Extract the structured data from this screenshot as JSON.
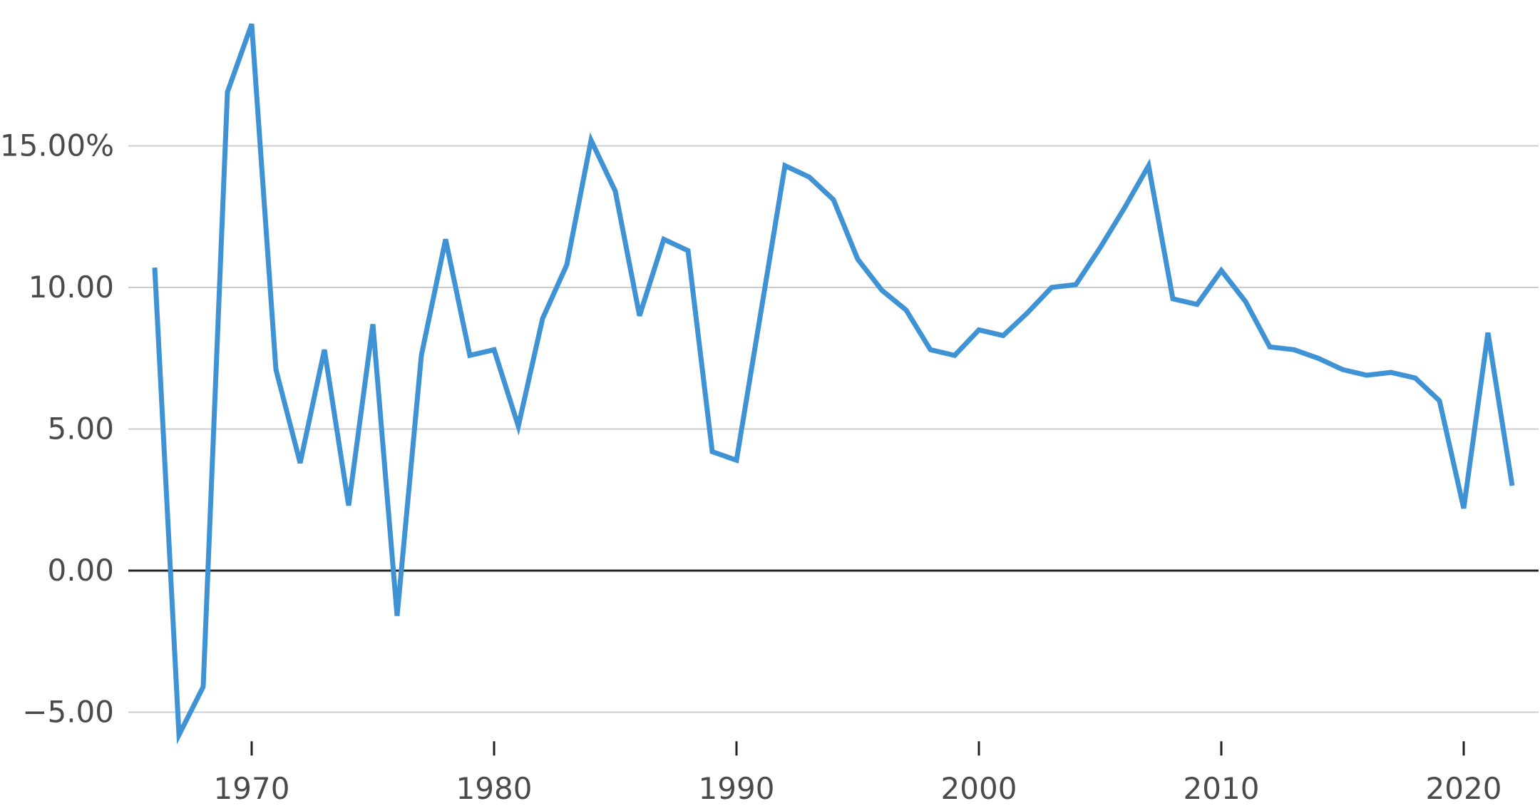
{
  "chart_data": {
    "type": "line",
    "title": "",
    "xlabel": "",
    "ylabel": "",
    "x": [
      1966,
      1967,
      1968,
      1969,
      1970,
      1971,
      1972,
      1973,
      1974,
      1975,
      1976,
      1977,
      1978,
      1979,
      1980,
      1981,
      1982,
      1983,
      1984,
      1985,
      1986,
      1987,
      1988,
      1989,
      1990,
      1991,
      1992,
      1993,
      1994,
      1995,
      1996,
      1997,
      1998,
      1999,
      2000,
      2001,
      2002,
      2003,
      2004,
      2005,
      2006,
      2007,
      2008,
      2009,
      2010,
      2011,
      2012,
      2013,
      2014,
      2015,
      2016,
      2017,
      2018,
      2019,
      2020,
      2021,
      2022
    ],
    "series": [
      {
        "values": [
          10.7,
          -5.8,
          -4.1,
          16.9,
          19.3,
          7.1,
          3.8,
          7.8,
          2.3,
          8.7,
          -1.6,
          7.6,
          11.7,
          7.6,
          7.8,
          5.1,
          8.9,
          10.8,
          15.2,
          13.4,
          9.0,
          11.7,
          11.3,
          4.2,
          3.9,
          9.1,
          14.3,
          13.9,
          13.1,
          11.0,
          9.9,
          9.2,
          7.8,
          7.6,
          8.5,
          8.3,
          9.1,
          10.0,
          10.1,
          11.4,
          12.8,
          14.3,
          9.6,
          9.4,
          10.6,
          9.5,
          7.9,
          7.8,
          7.5,
          7.1,
          6.9,
          7.0,
          6.8,
          6.0,
          2.2,
          8.4,
          3.0
        ]
      }
    ],
    "y_ticks": [
      {
        "value": 15,
        "label": "15.00%"
      },
      {
        "value": 10,
        "label": "10.00"
      },
      {
        "value": 5,
        "label": "5.00"
      },
      {
        "value": 0,
        "label": "0.00"
      },
      {
        "value": -5,
        "label": "-5.00"
      }
    ],
    "x_ticks": [
      {
        "value": 1970,
        "label": "1970"
      },
      {
        "value": 1980,
        "label": "1980"
      },
      {
        "value": 1990,
        "label": "1990"
      },
      {
        "value": 2000,
        "label": "2000"
      },
      {
        "value": 2010,
        "label": "2010"
      },
      {
        "value": 2020,
        "label": "2020"
      }
    ],
    "xlim": [
      1966,
      2022
    ],
    "ylim": [
      -5.8,
      19.3
    ],
    "grid": true,
    "legend": "none",
    "colors": {
      "line": "#3f93d4",
      "grid": "#cccccc",
      "zero_line": "#222222",
      "tick_text": "#4a4a4a"
    }
  }
}
